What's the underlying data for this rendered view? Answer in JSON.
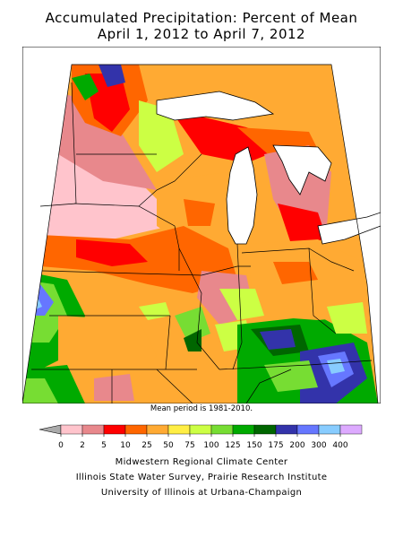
{
  "title_line1": "Accumulated Precipitation: Percent of Mean",
  "title_line2": "April 1, 2012 to April 7, 2012",
  "mean_period": "Mean period is 1981-2010.",
  "legend": {
    "ticks": [
      "0",
      "2",
      "5",
      "10",
      "25",
      "50",
      "75",
      "100",
      "125",
      "150",
      "175",
      "200",
      "300",
      "400"
    ],
    "colors": [
      "#ffc4cc",
      "#e8888c",
      "#ff0000",
      "#ff6600",
      "#ffaa33",
      "#ffee44",
      "#ccff44",
      "#77dd33",
      "#00aa00",
      "#006600",
      "#3333aa",
      "#6677ff",
      "#88ccff",
      "#ddaaff"
    ],
    "under_color": "#aaaaaa"
  },
  "credits": [
    "Midwestern Regional Climate Center",
    "Illinois State Water Survey, Prairie Research Institute",
    "University of Illinois at Urbana-Champaign"
  ]
}
